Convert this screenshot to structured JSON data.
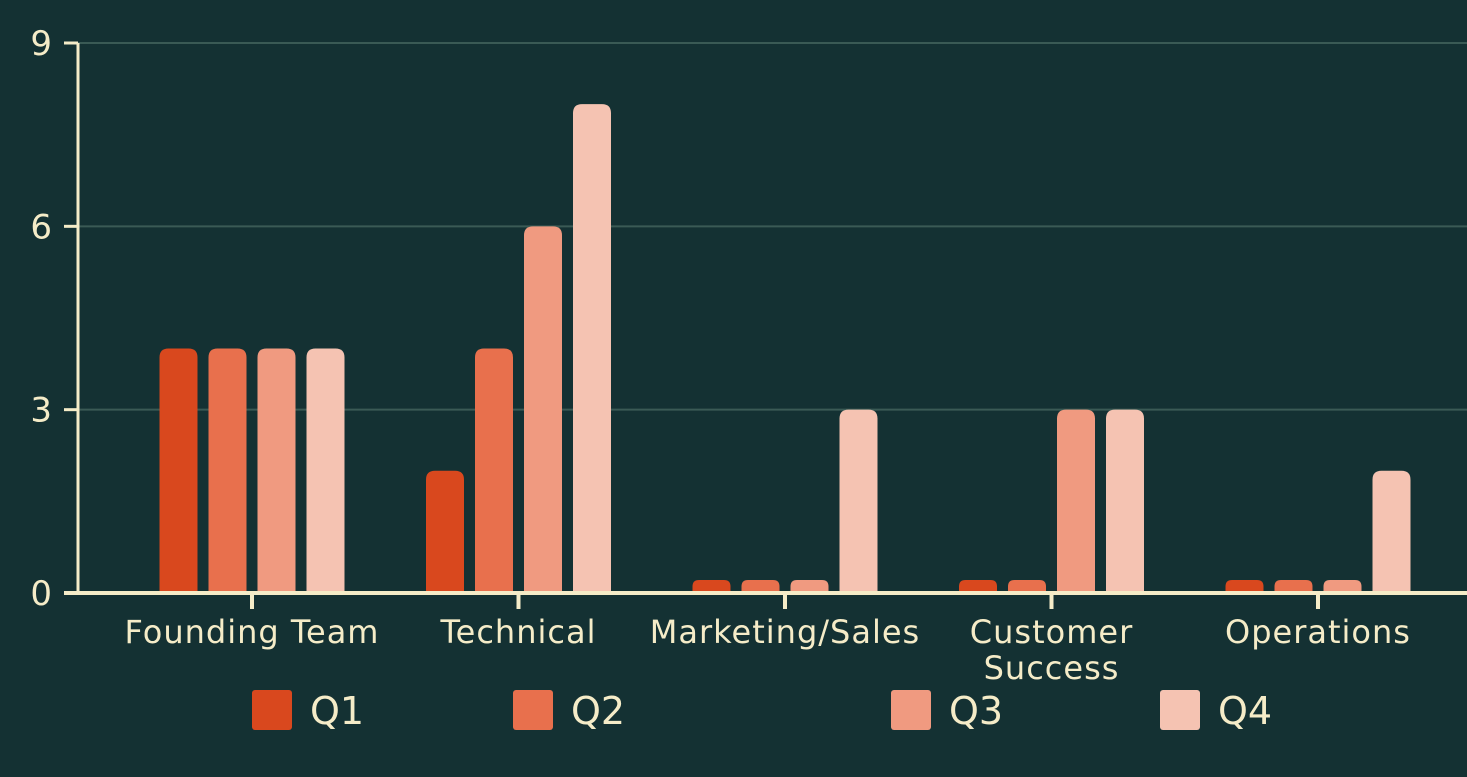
{
  "chart_data": {
    "type": "bar",
    "categories": [
      [
        "Founding Team"
      ],
      [
        "Technical"
      ],
      [
        "Marketing/Sales"
      ],
      [
        "Customer",
        "Success"
      ],
      [
        "Operations"
      ]
    ],
    "series": [
      {
        "name": "Q1",
        "color": "#d9481e",
        "values": [
          4,
          2,
          0,
          0,
          0
        ]
      },
      {
        "name": "Q2",
        "color": "#e8704d",
        "values": [
          4,
          4,
          0,
          0,
          0
        ]
      },
      {
        "name": "Q3",
        "color": "#f09a80",
        "values": [
          4,
          6,
          0,
          3,
          0
        ]
      },
      {
        "name": "Q4",
        "color": "#f5c3b2",
        "values": [
          4,
          8,
          3,
          3,
          2
        ]
      }
    ],
    "title": "",
    "xlabel": "",
    "ylabel": "",
    "ylim": [
      0,
      9
    ],
    "yticks": [
      0,
      3,
      6,
      9
    ],
    "grid": true,
    "legend_position": "bottom",
    "colors": {
      "background": "#143133",
      "axis": "#f5ecc8",
      "grid": "#3a5a55",
      "text": "#f5ecc8"
    }
  }
}
